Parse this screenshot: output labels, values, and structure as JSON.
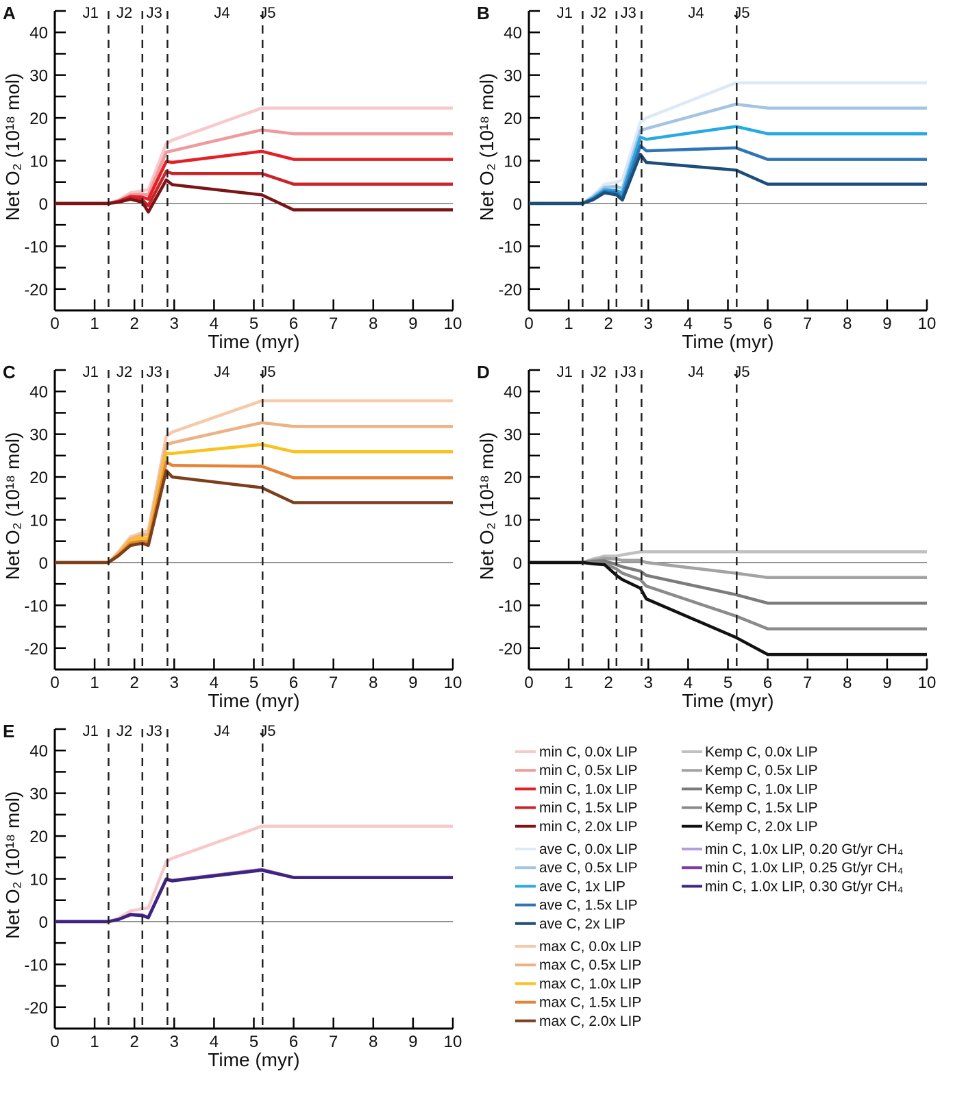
{
  "chart_data": [
    {
      "panel": "A",
      "type": "line",
      "xlabel": "Time (myr)",
      "ylabel": "Net O₂ (10¹⁸ mol)",
      "xlim": [
        0,
        10
      ],
      "ylim": [
        -25,
        45
      ],
      "xticks": [
        0,
        1,
        2,
        3,
        4,
        5,
        6,
        7,
        8,
        9,
        10
      ],
      "yticks": [
        -20,
        -10,
        0,
        10,
        20,
        30,
        40
      ],
      "phase_boundaries": [
        1.35,
        2.2,
        2.83,
        5.22
      ],
      "phase_labels": [
        "J1",
        "J2",
        "J3",
        "J4",
        "J5"
      ],
      "x": [
        0,
        1.35,
        1.6,
        1.9,
        2.2,
        2.35,
        2.8,
        2.95,
        5.2,
        6,
        10
      ],
      "series": [
        {
          "name": "min C, 0.0x LIP",
          "color": "#f7c9cb",
          "values": [
            0,
            0,
            0.8,
            2.5,
            3,
            3.2,
            14,
            14.8,
            22.3,
            22.3,
            22.3
          ]
        },
        {
          "name": "min C, 0.5x LIP",
          "color": "#ef9a9c",
          "values": [
            0,
            0,
            0.6,
            2,
            2.2,
            2,
            12,
            12.3,
            17.2,
            16.3,
            16.3
          ]
        },
        {
          "name": "min C, 1.0x LIP",
          "color": "#e32026",
          "values": [
            0,
            0,
            0.5,
            1.6,
            1.5,
            1,
            9.8,
            9.6,
            12.2,
            10.3,
            10.3
          ]
        },
        {
          "name": "min C, 1.5x LIP",
          "color": "#c8252b",
          "values": [
            0,
            0,
            0.4,
            1.3,
            0.8,
            -0.5,
            7.5,
            7,
            7,
            4.5,
            4.5
          ]
        },
        {
          "name": "min C, 2.0x LIP",
          "color": "#7a1416",
          "values": [
            0,
            0,
            0.3,
            1,
            0.3,
            -2,
            5.5,
            4.4,
            2,
            -1.5,
            -1.5
          ]
        }
      ]
    },
    {
      "panel": "B",
      "type": "line",
      "xlabel": "Time (myr)",
      "ylabel": "Net O₂ (10¹⁸ mol)",
      "xlim": [
        0,
        10
      ],
      "ylim": [
        -25,
        45
      ],
      "xticks": [
        0,
        1,
        2,
        3,
        4,
        5,
        6,
        7,
        8,
        9,
        10
      ],
      "yticks": [
        -20,
        -10,
        0,
        10,
        20,
        30,
        40
      ],
      "phase_boundaries": [
        1.35,
        2.2,
        2.83,
        5.22
      ],
      "phase_labels": [
        "J1",
        "J2",
        "J3",
        "J4",
        "J5"
      ],
      "x": [
        0,
        1.35,
        1.6,
        1.9,
        2.2,
        2.35,
        2.8,
        2.95,
        5.2,
        6,
        10
      ],
      "series": [
        {
          "name": "ave C, 0.0x LIP",
          "color": "#dce9f6",
          "values": [
            0,
            0,
            1.8,
            4.5,
            5,
            5.5,
            19,
            20,
            28.2,
            28.2,
            28.2
          ]
        },
        {
          "name": "ave C, 0.5x LIP",
          "color": "#a3c4e4",
          "values": [
            0,
            0,
            1.5,
            3.8,
            4,
            3.5,
            17,
            17.5,
            23.2,
            22.3,
            22.3
          ]
        },
        {
          "name": "ave C, 1x LIP",
          "color": "#27aae1",
          "values": [
            0,
            0,
            1.2,
            3.2,
            3,
            2.5,
            15.5,
            15,
            18,
            16.3,
            16.3
          ]
        },
        {
          "name": "ave C, 1.5x LIP",
          "color": "#2f75b5",
          "values": [
            0,
            0,
            1,
            2.8,
            2.5,
            1.5,
            13.5,
            12.3,
            13,
            10.3,
            10.3
          ]
        },
        {
          "name": "ave C, 2x LIP",
          "color": "#1d4e79",
          "values": [
            0,
            0,
            0.8,
            2.5,
            2,
            0.8,
            11.5,
            9.6,
            7.8,
            4.5,
            4.5
          ]
        }
      ]
    },
    {
      "panel": "C",
      "type": "line",
      "xlabel": "Time (myr)",
      "ylabel": "Net O₂ (10¹⁸ mol)",
      "xlim": [
        0,
        10
      ],
      "ylim": [
        -25,
        45
      ],
      "xticks": [
        0,
        1,
        2,
        3,
        4,
        5,
        6,
        7,
        8,
        9,
        10
      ],
      "yticks": [
        -20,
        -10,
        0,
        10,
        20,
        30,
        40
      ],
      "phase_boundaries": [
        1.35,
        2.2,
        2.83,
        5.22
      ],
      "phase_labels": [
        "J1",
        "J2",
        "J3",
        "J4",
        "J5"
      ],
      "x": [
        0,
        1.35,
        1.6,
        1.9,
        2.2,
        2.35,
        2.8,
        2.95,
        5.2,
        6,
        10
      ],
      "series": [
        {
          "name": "max C, 0.0x LIP",
          "color": "#f6c9a8",
          "values": [
            0,
            0,
            2.5,
            6,
            7,
            7.5,
            29.5,
            30.5,
            37.8,
            37.8,
            37.8
          ]
        },
        {
          "name": "max C, 0.5x LIP",
          "color": "#edb184",
          "values": [
            0,
            0,
            2.2,
            5.5,
            6.5,
            6.5,
            27.5,
            28,
            32.7,
            31.8,
            31.8
          ]
        },
        {
          "name": "max C, 1.0x LIP",
          "color": "#f9c21c",
          "values": [
            0,
            0,
            2,
            5,
            5.8,
            5.5,
            25.5,
            25.5,
            27.6,
            25.9,
            25.9
          ]
        },
        {
          "name": "max C, 1.5x LIP",
          "color": "#e58438",
          "values": [
            0,
            0,
            1.8,
            4.5,
            5,
            4.8,
            23.5,
            22.7,
            22.5,
            19.8,
            19.8
          ]
        },
        {
          "name": "max C, 2.0x LIP",
          "color": "#7c3f1c",
          "values": [
            0,
            0,
            1.6,
            4,
            4.5,
            4,
            21.5,
            20,
            17.5,
            14,
            14
          ]
        }
      ]
    },
    {
      "panel": "D",
      "type": "line",
      "xlabel": "Time (myr)",
      "ylabel": "Net O₂ (10¹⁸ mol)",
      "xlim": [
        0,
        10
      ],
      "ylim": [
        -25,
        45
      ],
      "xticks": [
        0,
        1,
        2,
        3,
        4,
        5,
        6,
        7,
        8,
        9,
        10
      ],
      "yticks": [
        -20,
        -10,
        0,
        10,
        20,
        30,
        40
      ],
      "phase_boundaries": [
        1.35,
        2.2,
        2.83,
        5.22
      ],
      "phase_labels": [
        "J1",
        "J2",
        "J3",
        "J4",
        "J5"
      ],
      "x": [
        0,
        1.35,
        1.6,
        1.9,
        2.2,
        2.35,
        2.8,
        2.95,
        5.2,
        6,
        10
      ],
      "series": [
        {
          "name": "Kemp C, 0.0x LIP",
          "color": "#c0c0c0",
          "values": [
            0,
            0,
            0.8,
            1.5,
            1.5,
            1.8,
            2.5,
            2.5,
            2.5,
            2.5,
            2.5
          ]
        },
        {
          "name": "Kemp C, 0.5x LIP",
          "color": "#a3a3a3",
          "values": [
            0,
            0,
            0.5,
            1,
            0.8,
            0.5,
            0.5,
            0,
            -2.5,
            -3.5,
            -3.5
          ]
        },
        {
          "name": "Kemp C, 1.0x LIP",
          "color": "#7b7b7b",
          "values": [
            0,
            0,
            0.3,
            0.4,
            -0.5,
            -1,
            -2,
            -3,
            -7.5,
            -9.5,
            -9.5
          ]
        },
        {
          "name": "Kemp C, 1.5x LIP",
          "color": "#8a8a8a",
          "values": [
            0,
            0,
            0,
            -0.2,
            -1.5,
            -2.5,
            -4,
            -5.5,
            -12.5,
            -15.5,
            -15.5
          ]
        },
        {
          "name": "Kemp C, 2.0x LIP",
          "color": "#111111",
          "values": [
            0,
            0,
            -0.3,
            -0.5,
            -3,
            -4,
            -6,
            -8.5,
            -17.5,
            -21.5,
            -21.5
          ]
        }
      ]
    },
    {
      "panel": "E",
      "type": "line",
      "xlabel": "Time (myr)",
      "ylabel": "Net O₂ (10¹⁸ mol)",
      "xlim": [
        0,
        10
      ],
      "ylim": [
        -25,
        45
      ],
      "xticks": [
        0,
        1,
        2,
        3,
        4,
        5,
        6,
        7,
        8,
        9,
        10
      ],
      "yticks": [
        -20,
        -10,
        0,
        10,
        20,
        30,
        40
      ],
      "phase_boundaries": [
        1.35,
        2.2,
        2.83,
        5.22
      ],
      "phase_labels": [
        "J1",
        "J2",
        "J3",
        "J4",
        "J5"
      ],
      "x": [
        0,
        1.35,
        1.6,
        1.9,
        2.2,
        2.35,
        2.8,
        2.95,
        5.2,
        6,
        10
      ],
      "series": [
        {
          "name": "min C, 0.0x LIP",
          "color": "#f7c9cb",
          "values": [
            0,
            0,
            0.8,
            2.5,
            3,
            3.2,
            14,
            14.8,
            22.3,
            22.3,
            22.3
          ]
        },
        {
          "name": "min C, 1.0x LIP",
          "color": "#e32026",
          "values": [
            0,
            0,
            0.5,
            1.6,
            1.5,
            1,
            9.8,
            9.6,
            12.2,
            10.3,
            10.3
          ]
        },
        {
          "name": "min C, 1.0x LIP, 0.20 Gt/yr CH₄",
          "color": "#b39ddb",
          "values": [
            0,
            0,
            0.5,
            1.7,
            1.5,
            1,
            10,
            9.6,
            12.2,
            10.3,
            10.3
          ]
        },
        {
          "name": "min C, 1.0x LIP, 0.25 Gt/yr CH₄",
          "color": "#7e3fa0",
          "values": [
            0,
            0,
            0.5,
            1.7,
            1.5,
            1,
            10,
            9.6,
            12.1,
            10.3,
            10.3
          ]
        },
        {
          "name": "min C, 1.0x LIP, 0.30 Gt/yr CH₄",
          "color": "#3c2483",
          "values": [
            0,
            0,
            0.5,
            1.6,
            1.4,
            0.9,
            9.9,
            9.5,
            12,
            10.3,
            10.3
          ]
        }
      ]
    }
  ],
  "legend": {
    "column1": [
      [
        {
          "label": "min C, 0.0x LIP",
          "color": "#f7c9cb"
        },
        {
          "label": "min C, 0.5x LIP",
          "color": "#ef9a9c"
        },
        {
          "label": "min C, 1.0x LIP",
          "color": "#e32026"
        },
        {
          "label": "min C, 1.5x LIP",
          "color": "#c8252b"
        },
        {
          "label": "min C, 2.0x LIP",
          "color": "#7a1416"
        }
      ],
      [
        {
          "label": "ave C, 0.0x LIP",
          "color": "#dce9f6"
        },
        {
          "label": "ave C, 0.5x LIP",
          "color": "#a3c4e4"
        },
        {
          "label": "ave C, 1x LIP",
          "color": "#27aae1"
        },
        {
          "label": "ave C, 1.5x LIP",
          "color": "#2f75b5"
        },
        {
          "label": "ave C, 2x LIP",
          "color": "#1d4e79"
        }
      ],
      [
        {
          "label": "max C, 0.0x LIP",
          "color": "#f6c9a8"
        },
        {
          "label": "max C, 0.5x LIP",
          "color": "#edb184"
        },
        {
          "label": "max C, 1.0x LIP",
          "color": "#f9c21c"
        },
        {
          "label": "max C, 1.5x LIP",
          "color": "#e58438"
        },
        {
          "label": "max C, 2.0x LIP",
          "color": "#7c3f1c"
        }
      ]
    ],
    "column2": [
      [
        {
          "label": "Kemp C, 0.0x LIP",
          "color": "#c0c0c0"
        },
        {
          "label": "Kemp C, 0.5x LIP",
          "color": "#a3a3a3"
        },
        {
          "label": "Kemp C, 1.0x LIP",
          "color": "#7b7b7b"
        },
        {
          "label": "Kemp C, 1.5x LIP",
          "color": "#8a8a8a"
        },
        {
          "label": "Kemp C, 2.0x LIP",
          "color": "#111111"
        }
      ],
      [
        {
          "label": "min C, 1.0x LIP, 0.20 Gt/yr CH₄",
          "color": "#b39ddb"
        },
        {
          "label": "min C, 1.0x LIP, 0.25 Gt/yr CH₄",
          "color": "#7e3fa0"
        },
        {
          "label": "min C, 1.0x LIP, 0.30 Gt/yr CH₄",
          "color": "#3c2483"
        }
      ]
    ]
  }
}
